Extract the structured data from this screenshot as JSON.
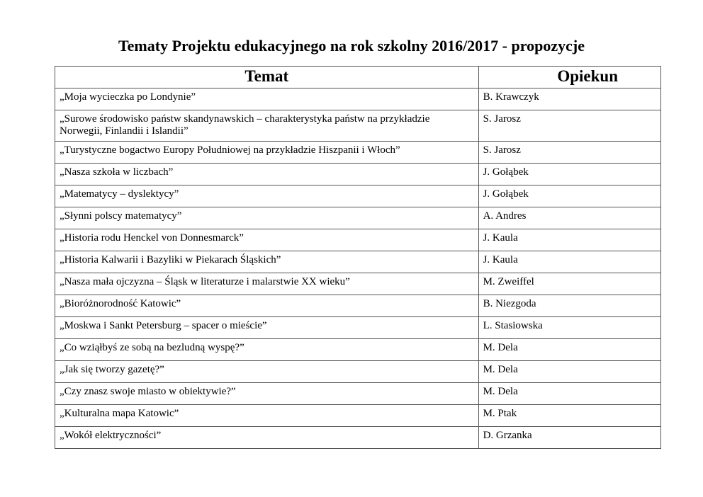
{
  "title": "Tematy Projektu edukacyjnego na rok szkolny 2016/2017 - propozycje",
  "table": {
    "headers": [
      "Temat",
      "Opiekun"
    ],
    "rows": [
      [
        "„Moja wycieczka po Londynie”",
        "B. Krawczyk"
      ],
      [
        "„Surowe środowisko państw skandynawskich – charakterystyka państw na przykładzie Norwegii, Finlandii i Islandii”",
        "S. Jarosz"
      ],
      [
        "„Turystyczne bogactwo Europy Południowej na przykładzie Hiszpanii i Włoch”",
        "S. Jarosz"
      ],
      [
        "„Nasza szkoła w liczbach”",
        "J. Gołąbek"
      ],
      [
        "„Matematycy – dyslektycy”",
        "J. Gołąbek"
      ],
      [
        "„Słynni polscy matematycy”",
        "A. Andres"
      ],
      [
        "„Historia rodu Henckel von Donnesmarck”",
        "J. Kaula"
      ],
      [
        "„Historia Kalwarii i Bazyliki w Piekarach Śląskich”",
        "J. Kaula"
      ],
      [
        "„Nasza mała ojczyzna – Śląsk w literaturze i malarstwie XX wieku”",
        "M. Zweiffel"
      ],
      [
        "„Bioróżnorodność Katowic”",
        "B. Niezgoda"
      ],
      [
        "„Moskwa i Sankt Petersburg – spacer o mieście”",
        "L. Stasiowska"
      ],
      [
        "„Co wziąłbyś ze sobą na bezludną wyspę?”",
        "M. Dela"
      ],
      [
        "„Jak się tworzy gazetę?”",
        "M. Dela"
      ],
      [
        "„Czy znasz swoje miasto w obiektywie?”",
        "M. Dela"
      ],
      [
        "„Kulturalna mapa Katowic”",
        "M. Ptak"
      ],
      [
        "„Wokół elektryczności”",
        "D. Grzanka"
      ]
    ]
  }
}
